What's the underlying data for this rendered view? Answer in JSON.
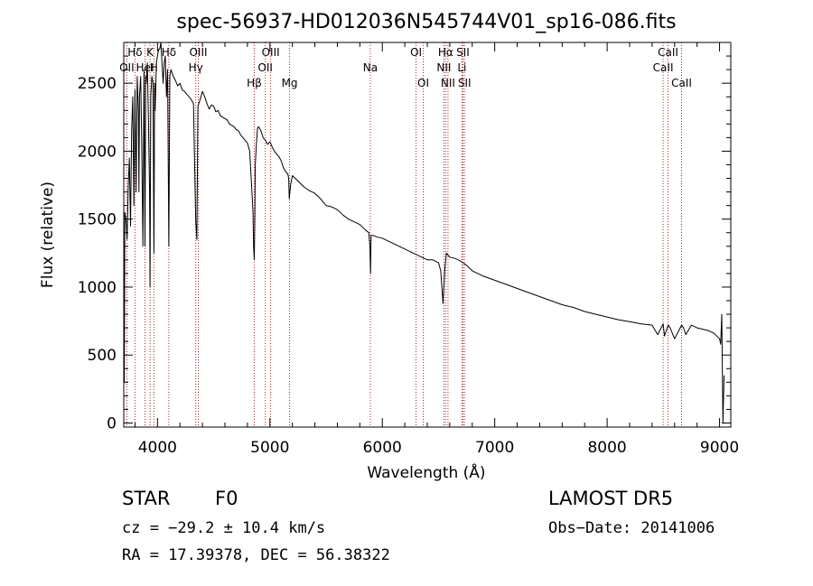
{
  "chart_data": {
    "type": "line",
    "title": "spec-56937-HD012036N545744V01_sp16-086.fits",
    "xlabel": "Wavelength (Å)",
    "ylabel": "Flux (relative)",
    "xlim": [
      3700,
      9100
    ],
    "ylim": [
      -30,
      2800
    ],
    "xticks": [
      4000,
      5000,
      6000,
      7000,
      8000,
      9000
    ],
    "yticks": [
      0,
      500,
      1000,
      1500,
      2000,
      2500
    ],
    "grid": false,
    "legend": "none",
    "line_color": "#000000",
    "marker_color": "#b22222",
    "series": [
      {
        "x": [
          3700,
          3705,
          3710,
          3720,
          3730,
          3740,
          3750,
          3760,
          3770,
          3780,
          3790,
          3800,
          3810,
          3820,
          3830,
          3835,
          3840,
          3850,
          3860,
          3870,
          3880,
          3889,
          3895,
          3900,
          3910,
          3920,
          3930,
          3934,
          3940,
          3950,
          3960,
          3968,
          3975,
          3980,
          3990,
          4000,
          4010,
          4020,
          4030,
          4040,
          4050,
          4060,
          4070,
          4080,
          4090,
          4101,
          4110,
          4120,
          4140,
          4160,
          4180,
          4200,
          4220,
          4240,
          4260,
          4280,
          4300,
          4320,
          4340,
          4350,
          4360,
          4380,
          4400,
          4420,
          4440,
          4460,
          4480,
          4500,
          4520,
          4540,
          4560,
          4580,
          4600,
          4620,
          4640,
          4660,
          4680,
          4700,
          4720,
          4740,
          4760,
          4780,
          4800,
          4820,
          4840,
          4850,
          4855,
          4861,
          4866,
          4870,
          4880,
          4890,
          4900,
          4920,
          4940,
          4960,
          4980,
          5000,
          5020,
          5040,
          5060,
          5080,
          5100,
          5120,
          5140,
          5160,
          5167,
          5172,
          5184,
          5200,
          5250,
          5300,
          5350,
          5400,
          5450,
          5500,
          5550,
          5600,
          5650,
          5700,
          5750,
          5800,
          5850,
          5880,
          5890,
          5895,
          5900,
          5920,
          5950,
          6000,
          6050,
          6100,
          6150,
          6200,
          6250,
          6300,
          6350,
          6400,
          6450,
          6500,
          6520,
          6540,
          6555,
          6563,
          6570,
          6580,
          6600,
          6650,
          6700,
          6750,
          6800,
          6900,
          7000,
          7100,
          7200,
          7300,
          7400,
          7500,
          7600,
          7700,
          7800,
          7900,
          8000,
          8100,
          8200,
          8300,
          8400,
          8450,
          8498,
          8510,
          8542,
          8560,
          8600,
          8662,
          8680,
          8700,
          8750,
          8800,
          8850,
          8900,
          8950,
          9000,
          9010,
          9020,
          9030,
          9040
        ],
        "y": [
          800,
          300,
          1550,
          1500,
          1350,
          1750,
          1950,
          1450,
          2150,
          2400,
          1600,
          2450,
          1700,
          2550,
          2300,
          1700,
          2400,
          2550,
          2050,
          1300,
          2600,
          1300,
          2550,
          2500,
          2650,
          2200,
          1700,
          1000,
          2400,
          2550,
          2500,
          1250,
          2500,
          2300,
          2650,
          2700,
          2750,
          2750,
          2850,
          2650,
          2500,
          2650,
          2700,
          2400,
          2600,
          1300,
          2550,
          2600,
          2550,
          2520,
          2480,
          2500,
          2450,
          2440,
          2420,
          2400,
          2380,
          2350,
          1500,
          1350,
          2330,
          2380,
          2440,
          2400,
          2350,
          2310,
          2340,
          2330,
          2290,
          2300,
          2260,
          2250,
          2240,
          2230,
          2200,
          2190,
          2180,
          2160,
          2150,
          2120,
          2100,
          2080,
          2060,
          2000,
          1700,
          1550,
          1300,
          1200,
          1500,
          1900,
          2050,
          2170,
          2180,
          2150,
          2100,
          2080,
          2050,
          2070,
          2030,
          2000,
          1980,
          1960,
          1930,
          1880,
          1850,
          1830,
          1800,
          1650,
          1750,
          1820,
          1780,
          1740,
          1710,
          1690,
          1650,
          1600,
          1590,
          1570,
          1530,
          1500,
          1480,
          1460,
          1420,
          1400,
          1300,
          1100,
          1380,
          1380,
          1370,
          1360,
          1340,
          1320,
          1300,
          1280,
          1260,
          1240,
          1220,
          1200,
          1200,
          1180,
          1120,
          880,
          1130,
          1190,
          1250,
          1240,
          1220,
          1210,
          1190,
          1160,
          1120,
          1080,
          1050,
          1020,
          990,
          960,
          930,
          900,
          870,
          850,
          820,
          800,
          780,
          760,
          745,
          730,
          720,
          650,
          730,
          640,
          720,
          700,
          620,
          720,
          700,
          650,
          720,
          700,
          690,
          680,
          660,
          620,
          580,
          800,
          0,
          350
        ]
      }
    ],
    "line_markers": [
      {
        "label": "Hδ",
        "x": 3800,
        "row": 1
      },
      {
        "label": "K",
        "x": 3934,
        "row": 1
      },
      {
        "label": "Hδ",
        "x": 4101,
        "row": 1
      },
      {
        "label": "OII",
        "x": 3727,
        "row": 2
      },
      {
        "label": "HeI",
        "x": 3889,
        "row": 2
      },
      {
        "label": "H",
        "x": 3968,
        "row": 2
      },
      {
        "label": "OIII",
        "x": 4363,
        "row": 1
      },
      {
        "label": "Hγ",
        "x": 4340,
        "row": 2
      },
      {
        "label": "OIII",
        "x": 5007,
        "row": 1
      },
      {
        "label": "OII",
        "x": 4959,
        "row": 2
      },
      {
        "label": "Hβ",
        "x": 4861,
        "row": 3
      },
      {
        "label": "Mg",
        "x": 5175,
        "row": 3
      },
      {
        "label": "Na",
        "x": 5893,
        "row": 2
      },
      {
        "label": "OI",
        "x": 6300,
        "row": 1
      },
      {
        "label": "OI",
        "x": 6364,
        "row": 3
      },
      {
        "label": "Hα",
        "x": 6563,
        "row": 1
      },
      {
        "label": "SII",
        "x": 6717,
        "row": 1
      },
      {
        "label": "NII",
        "x": 6548,
        "row": 2
      },
      {
        "label": "Li",
        "x": 6708,
        "row": 2
      },
      {
        "label": "NII",
        "x": 6584,
        "row": 3
      },
      {
        "label": "SII",
        "x": 6731,
        "row": 3
      },
      {
        "label": "CaII",
        "x": 8542,
        "row": 1
      },
      {
        "label": "CaII",
        "x": 8498,
        "row": 2
      },
      {
        "label": "CaII",
        "x": 8662,
        "row": 3
      }
    ]
  },
  "info": {
    "object_class": "STAR",
    "subclass": "F0",
    "survey": "LAMOST DR5",
    "redshift": "cz = −29.2 ± 10.4 km/s",
    "obs_date": "Obs−Date: 20141006",
    "coords": "RA =  17.39378, DEC =  56.38322"
  }
}
